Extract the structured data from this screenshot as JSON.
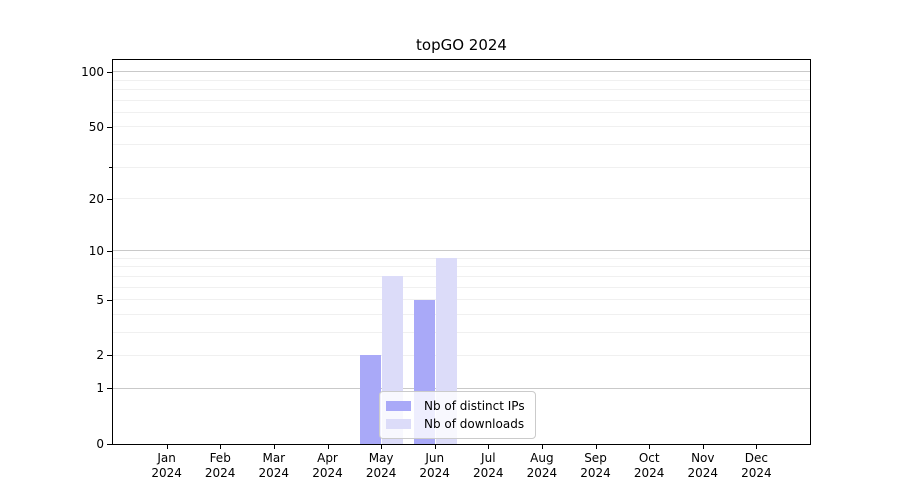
{
  "figure": {
    "title": "topGO 2024"
  },
  "chart_data": {
    "type": "bar",
    "title": "topGO 2024",
    "categories": [
      "Jan",
      "Feb",
      "Mar",
      "Apr",
      "May",
      "Jun",
      "Jul",
      "Aug",
      "Sep",
      "Oct",
      "Nov",
      "Dec"
    ],
    "category_year": "2024",
    "series": [
      {
        "name": "Nb of distinct IPs",
        "color": "#a9a9f8",
        "values": [
          0,
          0,
          0,
          0,
          2,
          5,
          0,
          0,
          0,
          0,
          0,
          0
        ]
      },
      {
        "name": "Nb of downloads",
        "color": "#dcdcf9",
        "values": [
          0,
          0,
          0,
          0,
          7,
          9,
          0,
          0,
          0,
          0,
          0,
          0
        ]
      }
    ],
    "xlabel": "",
    "ylabel": "",
    "y_scale": "log(x+1)",
    "ylim": [
      0,
      116
    ],
    "y_tick_values": [
      0,
      1,
      2,
      5,
      10,
      20,
      50,
      100
    ],
    "y_minor_tick_values": [
      30
    ],
    "y_major_gridlines": [
      1,
      10,
      100
    ],
    "y_minor_gridlines": [
      2,
      3,
      4,
      5,
      6,
      7,
      8,
      9,
      20,
      30,
      40,
      50,
      60,
      70,
      80,
      90
    ],
    "grid": true,
    "legend_position": "lower center"
  },
  "colors": {
    "bar_distinct_ips": "#a9a9f8",
    "bar_downloads": "#dcdcf9",
    "major_grid": "#c9c9c9",
    "minor_grid": "#f0f0f0",
    "axis": "#000000",
    "background": "#ffffff"
  }
}
